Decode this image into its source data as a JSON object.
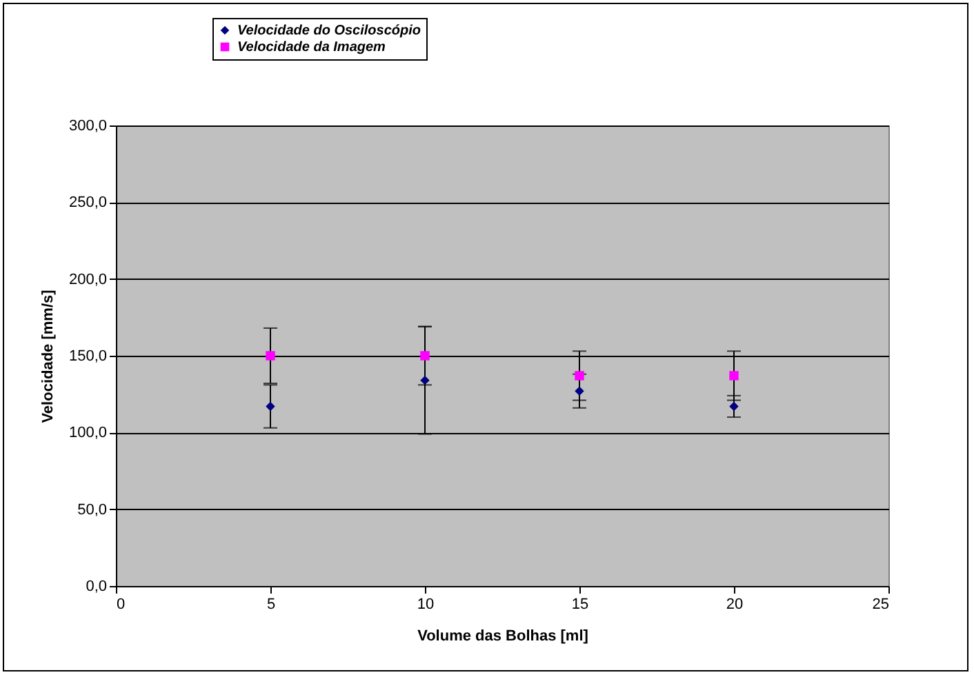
{
  "chart_data": {
    "type": "scatter",
    "xlabel": "Volume das Bolhas [ml]",
    "ylabel": "Velocidade [mm/s]",
    "x": [
      5,
      10,
      15,
      20
    ],
    "series": [
      {
        "name": "Velocidade do Osciloscópio",
        "color": "#000080",
        "marker": "diamond",
        "values": [
          117,
          134,
          127,
          117
        ],
        "errors": [
          14,
          35,
          11,
          7
        ]
      },
      {
        "name": "Velocidade da Imagem",
        "color": "#ff00ff",
        "marker": "square",
        "values": [
          150,
          150,
          137,
          137
        ],
        "errors": [
          18,
          19,
          16,
          16
        ]
      }
    ],
    "xlim": [
      0,
      25
    ],
    "xticks": [
      0,
      5,
      10,
      15,
      20,
      25
    ],
    "ylim": [
      0,
      300
    ],
    "yticks": [
      {
        "value": 0,
        "label": "0,0"
      },
      {
        "value": 50,
        "label": "50,0"
      },
      {
        "value": 100,
        "label": "100,0"
      },
      {
        "value": 150,
        "label": "150,0"
      },
      {
        "value": 200,
        "label": "200,0"
      },
      {
        "value": 250,
        "label": "250,0"
      },
      {
        "value": 300,
        "label": "300,0"
      }
    ],
    "grid": "y",
    "legend": "top"
  }
}
